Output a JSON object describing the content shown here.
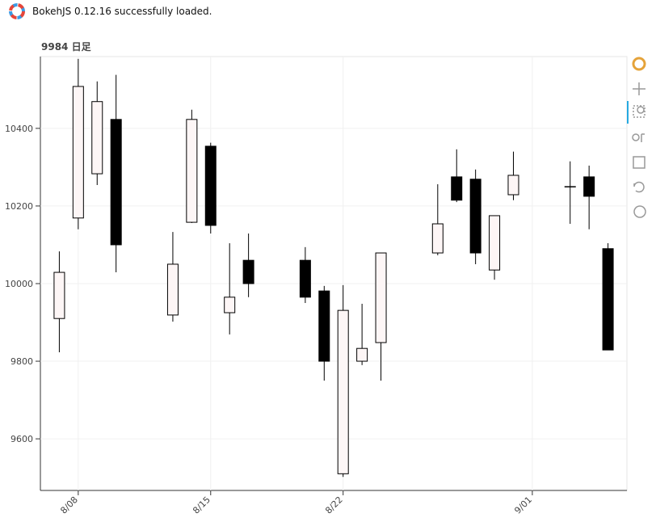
{
  "notice": "BokehJS 0.12.16 successfully loaded.",
  "chart_data": {
    "type": "candlestick",
    "title": "9984 日足",
    "x": [
      "8/07",
      "8/08",
      "8/09",
      "8/10",
      "8/13",
      "8/14",
      "8/15",
      "8/16",
      "8/17",
      "8/20",
      "8/21",
      "8/22",
      "8/23",
      "8/24",
      "8/27",
      "8/28",
      "8/29",
      "8/30",
      "8/31",
      "9/03",
      "9/04",
      "9/05"
    ],
    "open": [
      9910,
      10169,
      10283,
      10423,
      9919,
      10158,
      10354,
      9925,
      10060,
      10060,
      9981,
      9510,
      9800,
      9848,
      10079,
      10275,
      10269,
      10035,
      10229,
      10250,
      10275,
      10090
    ],
    "high": [
      10083,
      10579,
      10521,
      10538,
      10133,
      10448,
      10363,
      10104,
      10129,
      10094,
      9994,
      9996,
      9948,
      10079,
      10256,
      10346,
      10294,
      10175,
      10340,
      10315,
      10304,
      10104
    ],
    "low": [
      9823,
      10140,
      10254,
      10029,
      9902,
      10156,
      10129,
      9869,
      9965,
      9950,
      9750,
      9502,
      9790,
      9750,
      10073,
      10210,
      10050,
      10010,
      10215,
      10154,
      10140,
      9829
    ],
    "close": [
      10029,
      10508,
      10469,
      10100,
      10050,
      10423,
      10150,
      9965,
      10000,
      9965,
      9800,
      9931,
      9833,
      10079,
      10154,
      10215,
      10079,
      10175,
      10279,
      10250,
      10225,
      9829
    ],
    "increasing_color": "#fdf6f6",
    "decreasing_color": "#000000",
    "xlim": [
      "8/06",
      "9/06"
    ],
    "xticks": [
      "8/08",
      "8/15",
      "8/22",
      "9/01"
    ],
    "ylim": [
      9467,
      10585
    ],
    "yticks": [
      9600,
      9800,
      10000,
      10200,
      10400
    ],
    "grid": true
  }
}
